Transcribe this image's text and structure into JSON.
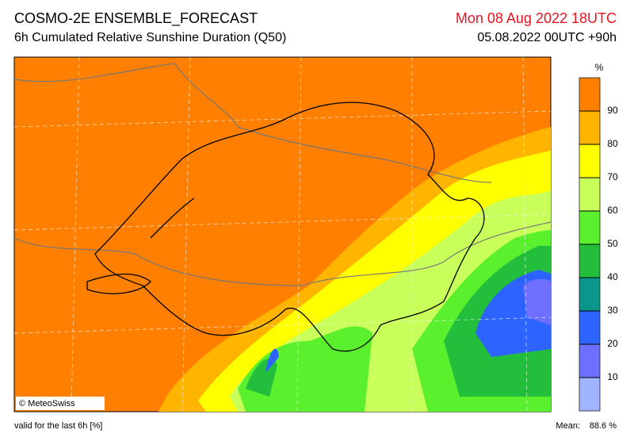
{
  "header": {
    "title": "COSMO-2E ENSEMBLE_FORECAST",
    "subtitle": "6h Cumulated Relative Sunshine Duration (Q50)",
    "valid_time": "Mon 08 Aug 2022 18UTC",
    "run": "05.08.2022 00UTC +90h"
  },
  "map": {
    "credit": "© MeteoSwiss"
  },
  "colorbar": {
    "unit": "%",
    "ticks": [
      10,
      20,
      30,
      40,
      50,
      60,
      70,
      80,
      90
    ],
    "colors": [
      "#a0b4ff",
      "#6e6eff",
      "#2d64ff",
      "#0a968c",
      "#23be3c",
      "#5af02d",
      "#c8ff5a",
      "#ffff00",
      "#ffb400",
      "#ff8000"
    ]
  },
  "footer": {
    "note": "valid for the last 6h [%]",
    "mean_label": "Mean:",
    "mean_value": "88.6 %"
  }
}
